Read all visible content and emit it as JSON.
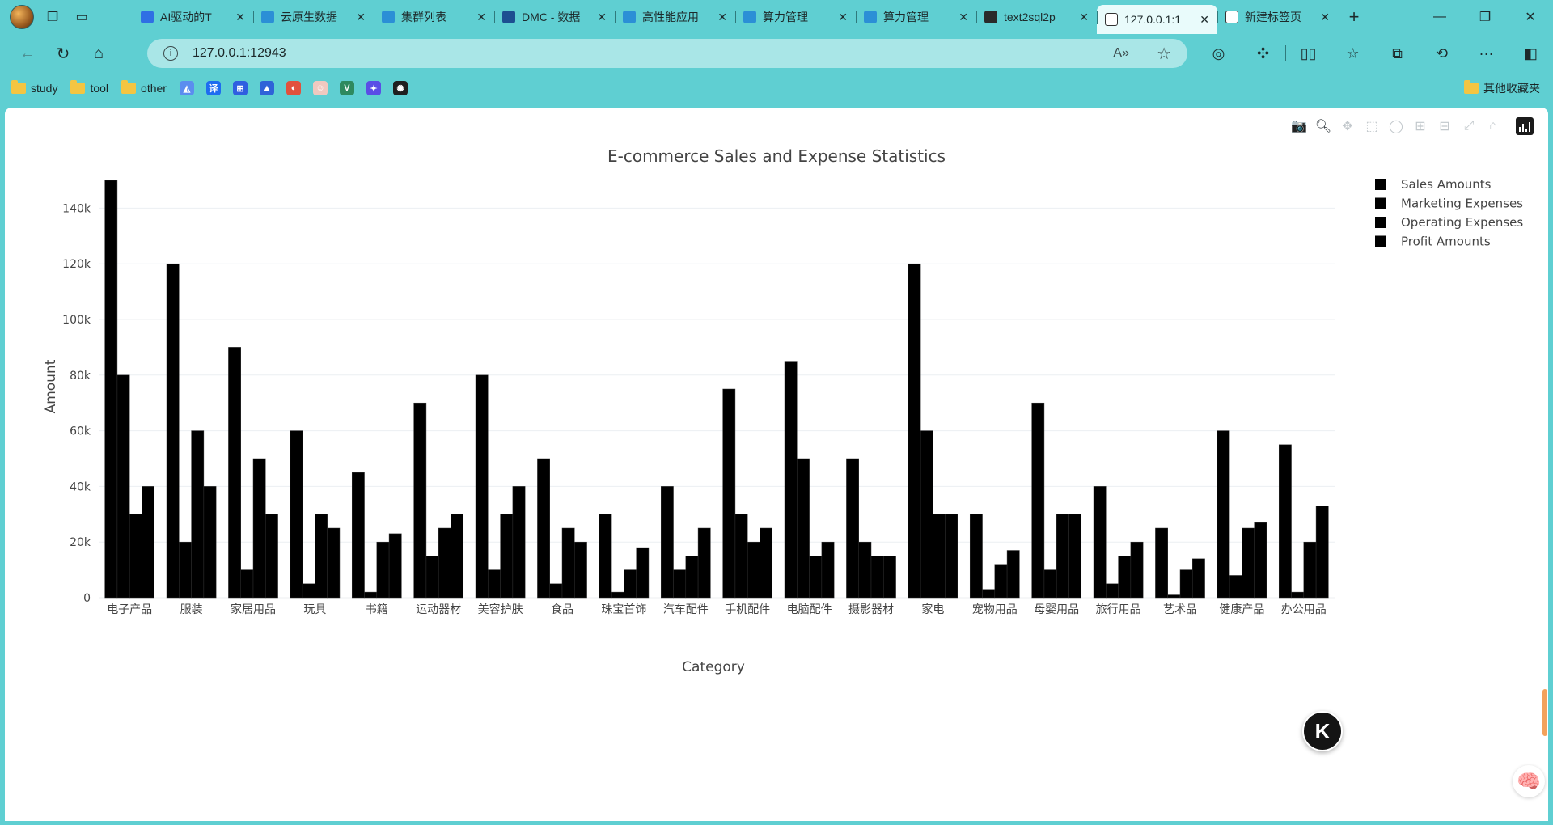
{
  "browser": {
    "tabs": [
      {
        "label": "AI驱动的T",
        "icon_color": "#2f6fe4",
        "icon": "doc-icon"
      },
      {
        "label": "云原生数据",
        "icon_color": "#2b8fd6",
        "icon": "cloud-icon"
      },
      {
        "label": "集群列表",
        "icon_color": "#2b8fd6",
        "icon": "cloud-icon"
      },
      {
        "label": "DMC - 数据",
        "icon_color": "#1d4f91",
        "icon": "d-logo-icon"
      },
      {
        "label": "高性能应用",
        "icon_color": "#2b8fd6",
        "icon": "cloud-icon"
      },
      {
        "label": "算力管理",
        "icon_color": "#2b8fd6",
        "icon": "cloud-icon"
      },
      {
        "label": "算力管理",
        "icon_color": "#2b8fd6",
        "icon": "cloud-icon"
      },
      {
        "label": "text2sql2p",
        "icon_color": "#2a2a2a",
        "icon": "github-icon"
      },
      {
        "label": "127.0.0.1:1",
        "icon_color": "#ffffff",
        "icon": "page-icon",
        "active": true
      },
      {
        "label": "新建标签页",
        "icon_color": "#ffffff",
        "icon": "newtab-icon"
      }
    ],
    "url": "127.0.0.1:12943",
    "bookmarks": [
      {
        "label": "study",
        "type": "folder"
      },
      {
        "label": "tool",
        "type": "folder"
      },
      {
        "label": "other",
        "type": "folder"
      }
    ],
    "bookmark_icons": [
      {
        "name": "maxcompute-icon",
        "color": "#5b8def",
        "glyph": "◭"
      },
      {
        "name": "translate-icon",
        "color": "#1e6cf0",
        "glyph": "译"
      },
      {
        "name": "tool-icon",
        "color": "#2f5fe0",
        "glyph": "⊞"
      },
      {
        "name": "mountain-icon",
        "color": "#2f63d8",
        "glyph": "▲"
      },
      {
        "name": "edge-icon",
        "color": "#e2513d",
        "glyph": "◐"
      },
      {
        "name": "avatar-icon",
        "color": "#f0c9c0",
        "glyph": "☺"
      },
      {
        "name": "vue-icon",
        "color": "#2e8a5f",
        "glyph": "V"
      },
      {
        "name": "app-icon",
        "color": "#5a4ee6",
        "glyph": "✦"
      },
      {
        "name": "openai-icon",
        "color": "#1f1f1f",
        "glyph": "✺"
      }
    ],
    "other_bookmarks": "其他收藏夹"
  },
  "chart_data": {
    "type": "bar",
    "title": "E-commerce Sales and Expense Statistics",
    "xlabel": "Category",
    "ylabel": "Amount",
    "ylim": [
      0,
      150000
    ],
    "yticks": [
      0,
      20000,
      40000,
      60000,
      80000,
      100000,
      120000,
      140000
    ],
    "ytick_labels": [
      "0",
      "20k",
      "40k",
      "60k",
      "80k",
      "100k",
      "120k",
      "140k"
    ],
    "grid": true,
    "legend_position": "top-right",
    "bar_color": "#000000",
    "categories": [
      "电子产品",
      "服装",
      "家居用品",
      "玩具",
      "书籍",
      "运动器材",
      "美容护肤",
      "食品",
      "珠宝首饰",
      "汽车配件",
      "手机配件",
      "电脑配件",
      "摄影器材",
      "家电",
      "宠物用品",
      "母婴用品",
      "旅行用品",
      "艺术品",
      "健康产品",
      "办公用品"
    ],
    "series": [
      {
        "name": "Sales Amounts",
        "values": [
          150000,
          120000,
          90000,
          60000,
          45000,
          70000,
          80000,
          50000,
          30000,
          40000,
          75000,
          85000,
          50000,
          120000,
          30000,
          70000,
          40000,
          25000,
          60000,
          55000
        ]
      },
      {
        "name": "Marketing Expenses",
        "values": [
          80000,
          20000,
          10000,
          5000,
          2000,
          15000,
          10000,
          5000,
          2000,
          10000,
          30000,
          50000,
          20000,
          60000,
          3000,
          10000,
          5000,
          1000,
          8000,
          2000
        ]
      },
      {
        "name": "Operating Expenses",
        "values": [
          30000,
          60000,
          50000,
          30000,
          20000,
          25000,
          30000,
          25000,
          10000,
          15000,
          20000,
          15000,
          15000,
          30000,
          12000,
          30000,
          15000,
          10000,
          25000,
          20000
        ]
      },
      {
        "name": "Profit Amounts",
        "values": [
          40000,
          40000,
          30000,
          25000,
          23000,
          30000,
          40000,
          20000,
          18000,
          25000,
          25000,
          20000,
          15000,
          30000,
          17000,
          30000,
          20000,
          14000,
          27000,
          33000
        ]
      }
    ]
  }
}
